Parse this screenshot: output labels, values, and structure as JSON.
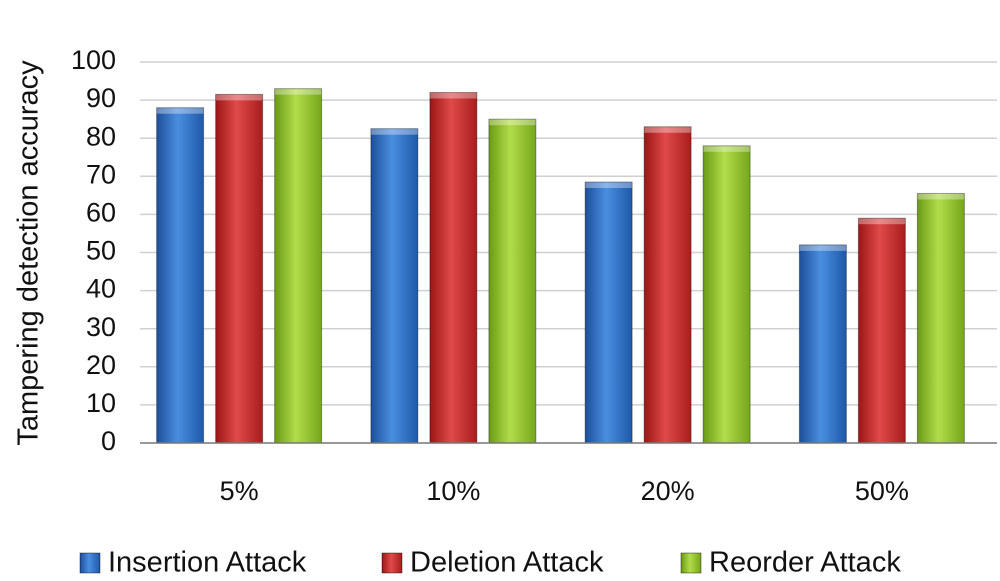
{
  "chart_data": {
    "type": "bar",
    "title": "",
    "xlabel": "",
    "ylabel": "Tampering detection accuracy",
    "categories": [
      "5%",
      "10%",
      "20%",
      "50%"
    ],
    "series": [
      {
        "name": "Insertion Attack",
        "values": [
          88,
          82.5,
          68.5,
          52
        ],
        "color": "#2f6fc6"
      },
      {
        "name": "Deletion Attack",
        "values": [
          91.5,
          92,
          83,
          59
        ],
        "color": "#cc2a2a"
      },
      {
        "name": "Reorder Attack",
        "values": [
          93,
          85,
          78,
          65.5
        ],
        "color": "#8fbe2a"
      }
    ],
    "ylim": [
      0,
      100
    ],
    "yticks": [
      0,
      10,
      20,
      30,
      40,
      50,
      60,
      70,
      80,
      90,
      100
    ],
    "grid": true,
    "legend_position": "bottom"
  }
}
